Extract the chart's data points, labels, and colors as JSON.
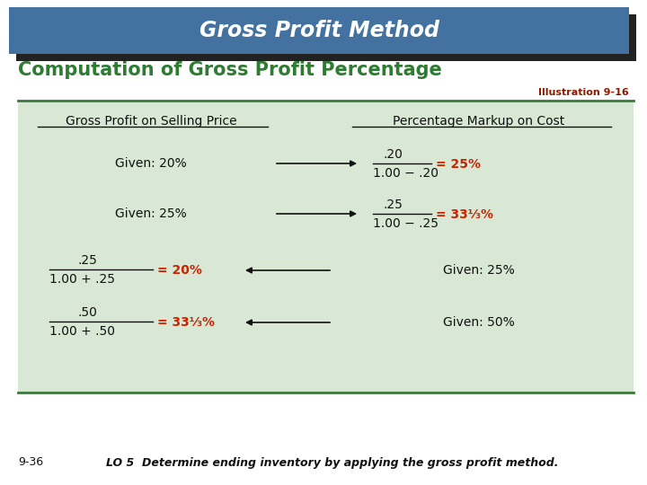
{
  "title": "Gross Profit Method",
  "subtitle": "Computation of Gross Profit Percentage",
  "illustration": "Illustration 9-16",
  "footer_left": "9-36",
  "footer_right": "LO 5  Determine ending inventory by applying the gross profit method.",
  "header_bg": "#4472A0",
  "header_shadow": "#222222",
  "subtitle_color": "#2E7B32",
  "illustration_color": "#8B1A00",
  "table_bg": "#D8E8D4",
  "table_border_top": "#3A7A3A",
  "table_border_bot": "#3A7A3A",
  "col1_header": "Gross Profit on Selling Price",
  "col2_header": "Percentage Markup on Cost",
  "red_color": "#CC2200",
  "black_color": "#111111",
  "white_color": "#FFFFFF",
  "bg_color": "#FFFFFF"
}
